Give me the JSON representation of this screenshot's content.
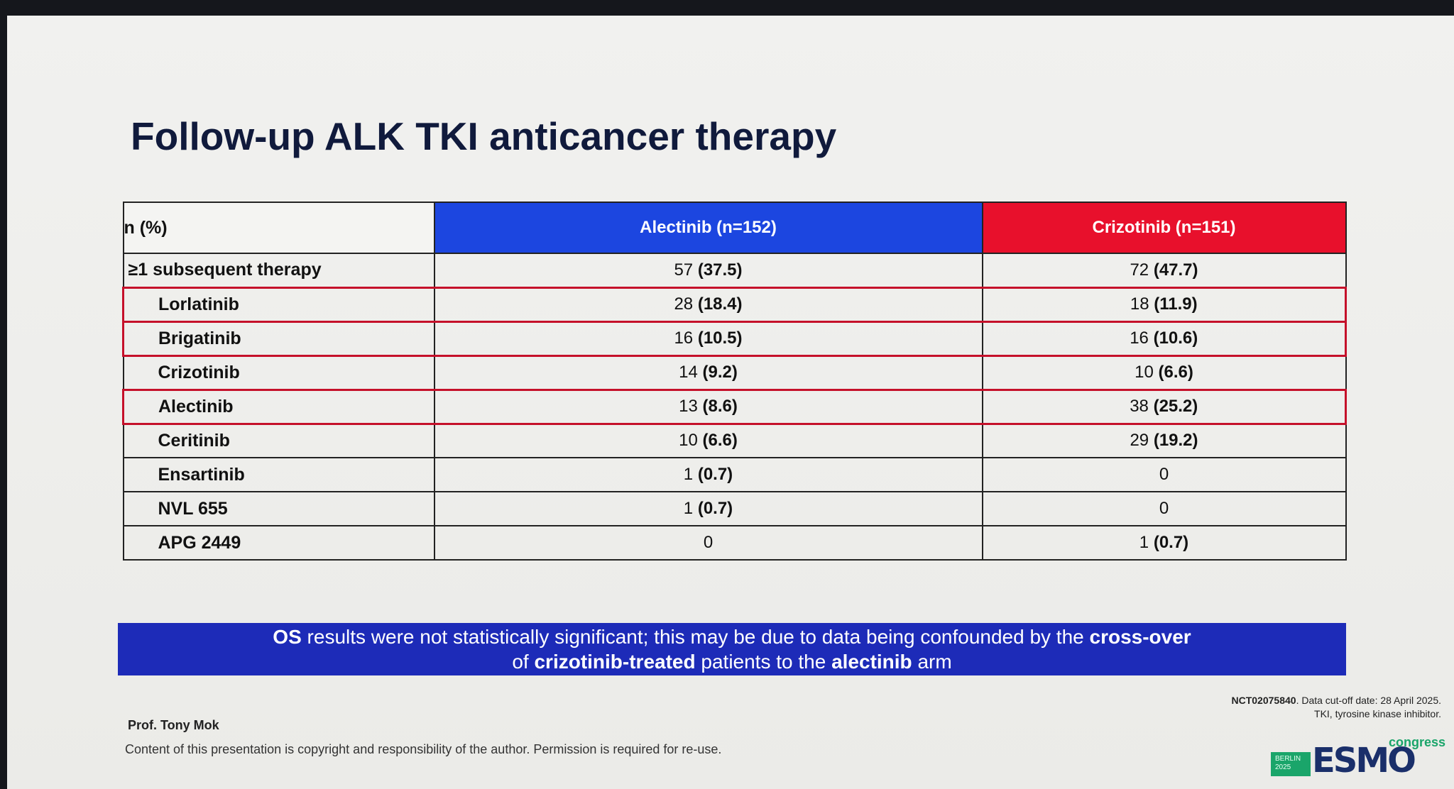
{
  "slide": {
    "title": "Follow-up ALK TKI anticancer therapy",
    "table": {
      "corner": "n (%)",
      "col_a": "Alectinib (n=152)",
      "col_c": "Crizotinib (n=151)",
      "colors": {
        "alectinib": "#1c46e0",
        "crizotinib": "#e8102c",
        "highlight": "#c5102a"
      },
      "rows": [
        {
          "label": "≥1 subsequent therapy",
          "a_n": "57",
          "a_pct": "(37.5)",
          "c_n": "72",
          "c_pct": "(47.7)",
          "highlighted": false
        },
        {
          "label": "Lorlatinib",
          "a_n": "28",
          "a_pct": "(18.4)",
          "c_n": "18",
          "c_pct": "(11.9)",
          "highlighted": true
        },
        {
          "label": "Brigatinib",
          "a_n": "16",
          "a_pct": "(10.5)",
          "c_n": "16",
          "c_pct": "(10.6)",
          "highlighted": true
        },
        {
          "label": "Crizotinib",
          "a_n": "14",
          "a_pct": "(9.2)",
          "c_n": "10",
          "c_pct": "(6.6)",
          "highlighted": false
        },
        {
          "label": "Alectinib",
          "a_n": "13",
          "a_pct": "(8.6)",
          "c_n": "38",
          "c_pct": "(25.2)",
          "highlighted": true
        },
        {
          "label": "Ceritinib",
          "a_n": "10",
          "a_pct": "(6.6)",
          "c_n": "29",
          "c_pct": "(19.2)",
          "highlighted": false
        },
        {
          "label": "Ensartinib",
          "a_n": "1",
          "a_pct": "(0.7)",
          "c_n": "0",
          "c_pct": "",
          "highlighted": false
        },
        {
          "label": "NVL 655",
          "a_n": "1",
          "a_pct": "(0.7)",
          "c_n": "0",
          "c_pct": "",
          "highlighted": false
        },
        {
          "label": "APG 2449",
          "a_n": "0",
          "a_pct": "",
          "c_n": "1",
          "c_pct": "(0.7)",
          "highlighted": false
        }
      ]
    },
    "banner": {
      "line1_b1": "OS",
      "line1_t1": " results were not statistically significant; this may be due to data being confounded by the ",
      "line1_b2": "cross-over",
      "line2_t1": "of ",
      "line2_b1": "crizotinib-treated",
      "line2_t2": " patients to the ",
      "line2_b2": "alectinib",
      "line2_t3": " arm"
    },
    "footnote": {
      "trial_id": "NCT02075840",
      "cutoff": ". Data cut-off date: 28 April 2025.",
      "abbrev": "TKI, tyrosine kinase inhibitor."
    },
    "author": "Prof. Tony Mok",
    "copyright": "Content of this presentation is copyright and responsibility of the author. Permission is required for re-use.",
    "logo": {
      "badge_line1": "BERLIN",
      "badge_line2": "2025",
      "wordmark": "ESMO",
      "tag": "congress"
    }
  }
}
